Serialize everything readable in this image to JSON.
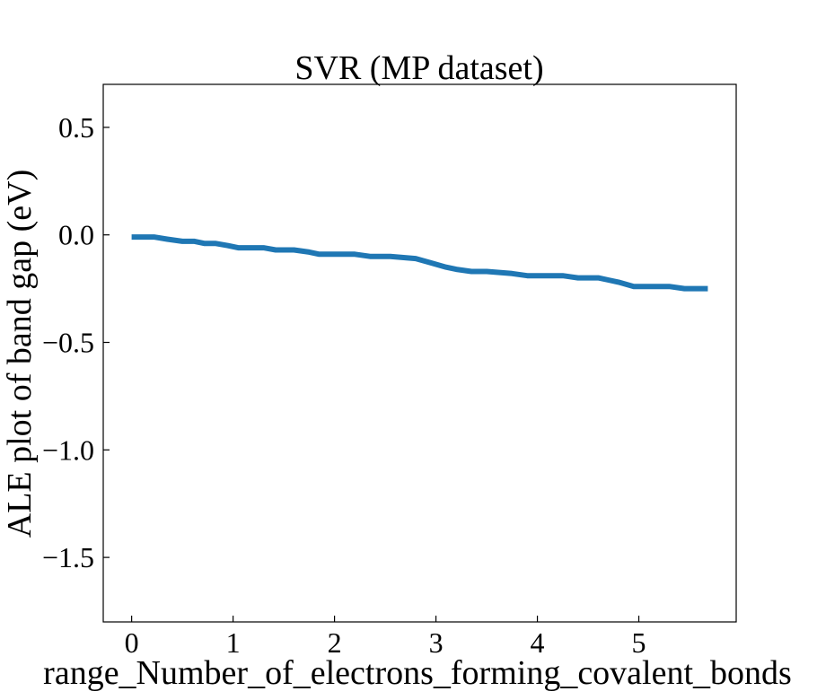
{
  "chart_data": {
    "type": "line",
    "title": "SVR (MP dataset)",
    "xlabel": "range_Number_of_electrons_forming_covalent_bonds",
    "ylabel": "ALE plot of band gap (eV)",
    "xlim": [
      -0.28,
      5.96
    ],
    "ylim": [
      -1.8,
      0.7
    ],
    "xticks": [
      0,
      1,
      2,
      3,
      4,
      5
    ],
    "xtick_labels": [
      "0",
      "1",
      "2",
      "3",
      "4",
      "5"
    ],
    "yticks": [
      0.5,
      0.0,
      -0.5,
      -1.0,
      -1.5
    ],
    "ytick_labels": [
      "0.5",
      "0.0",
      "−0.5",
      "−1.0",
      "−1.5"
    ],
    "grid": false,
    "series": [
      {
        "color": "#1f77b4",
        "x": [
          0.0,
          0.22,
          0.35,
          0.5,
          0.62,
          0.72,
          0.83,
          0.95,
          1.05,
          1.15,
          1.3,
          1.42,
          1.6,
          1.75,
          1.85,
          2.0,
          2.2,
          2.35,
          2.55,
          2.8,
          2.95,
          3.1,
          3.2,
          3.35,
          3.5,
          3.75,
          3.9,
          4.05,
          4.25,
          4.4,
          4.6,
          4.7,
          4.8,
          4.95,
          5.1,
          5.3,
          5.45,
          5.55,
          5.68
        ],
        "y": [
          -0.01,
          -0.01,
          -0.02,
          -0.03,
          -0.03,
          -0.04,
          -0.04,
          -0.05,
          -0.06,
          -0.06,
          -0.06,
          -0.07,
          -0.07,
          -0.08,
          -0.09,
          -0.09,
          -0.09,
          -0.1,
          -0.1,
          -0.11,
          -0.13,
          -0.15,
          -0.16,
          -0.17,
          -0.17,
          -0.18,
          -0.19,
          -0.19,
          -0.19,
          -0.2,
          -0.2,
          -0.21,
          -0.22,
          -0.24,
          -0.24,
          -0.24,
          -0.25,
          -0.25,
          -0.25
        ]
      }
    ]
  }
}
